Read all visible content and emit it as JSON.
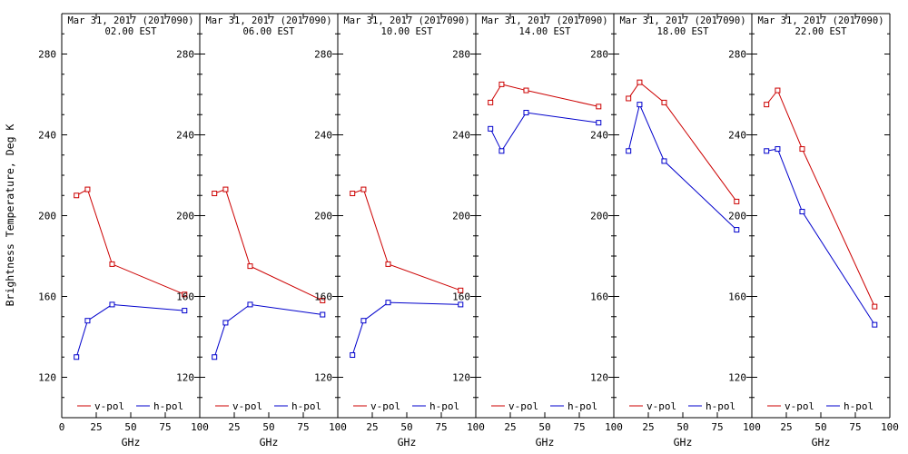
{
  "figure": {
    "background": "#ffffff",
    "axis_color": "#000000",
    "colors": {
      "v_pol": "#cc0000",
      "h_pol": "#0000cc"
    }
  },
  "chart_data": {
    "type": "line",
    "title": "Mar 31, 2017 (2017090)",
    "ylabel": "Brightness Temperature, Deg K",
    "xlabel": "GHz",
    "x": [
      10.65,
      18.7,
      36.5,
      89
    ],
    "xlim": [
      0,
      100
    ],
    "ylim": [
      100,
      300
    ],
    "xticks": [
      0,
      25,
      50,
      75,
      100
    ],
    "yticks": [
      120,
      160,
      200,
      240,
      280
    ],
    "y_minor_step": 10,
    "grid": false,
    "legend_position": "bottom-inside-each-panel",
    "legend_entries": [
      {
        "label": "v-pol",
        "color": "#cc0000"
      },
      {
        "label": "h-pol",
        "color": "#0000cc"
      }
    ],
    "panels": [
      {
        "title_line1": "Mar 31, 2017 (2017090)",
        "title_line2": "02.00 EST",
        "series": [
          {
            "name": "v-pol",
            "color": "#cc0000",
            "values": [
              210,
              213,
              176,
              161
            ]
          },
          {
            "name": "h-pol",
            "color": "#0000cc",
            "values": [
              130,
              148,
              156,
              153
            ]
          }
        ]
      },
      {
        "title_line1": "Mar 31, 2017 (2017090)",
        "title_line2": "06.00 EST",
        "series": [
          {
            "name": "v-pol",
            "color": "#cc0000",
            "values": [
              211,
              213,
              175,
              158
            ]
          },
          {
            "name": "h-pol",
            "color": "#0000cc",
            "values": [
              130,
              147,
              156,
              151
            ]
          }
        ]
      },
      {
        "title_line1": "Mar 31, 2017 (2017090)",
        "title_line2": "10.00 EST",
        "series": [
          {
            "name": "v-pol",
            "color": "#cc0000",
            "values": [
              211,
              213,
              176,
              163
            ]
          },
          {
            "name": "h-pol",
            "color": "#0000cc",
            "values": [
              131,
              148,
              157,
              156
            ]
          }
        ]
      },
      {
        "title_line1": "Mar 31, 2017 (2017090)",
        "title_line2": "14.00 EST",
        "series": [
          {
            "name": "v-pol",
            "color": "#cc0000",
            "values": [
              256,
              265,
              262,
              254
            ]
          },
          {
            "name": "h-pol",
            "color": "#0000cc",
            "values": [
              243,
              232,
              251,
              246
            ]
          }
        ]
      },
      {
        "title_line1": "Mar 31, 2017 (2017090)",
        "title_line2": "18.00 EST",
        "series": [
          {
            "name": "v-pol",
            "color": "#cc0000",
            "values": [
              258,
              266,
              256,
              207
            ]
          },
          {
            "name": "h-pol",
            "color": "#0000cc",
            "values": [
              232,
              255,
              227,
              193
            ]
          }
        ]
      },
      {
        "title_line1": "Mar 31, 2017 (2017090)",
        "title_line2": "22.00 EST",
        "series": [
          {
            "name": "v-pol",
            "color": "#cc0000",
            "values": [
              255,
              262,
              233,
              155
            ]
          },
          {
            "name": "h-pol",
            "color": "#0000cc",
            "values": [
              232,
              233,
              202,
              146
            ]
          }
        ]
      }
    ]
  }
}
